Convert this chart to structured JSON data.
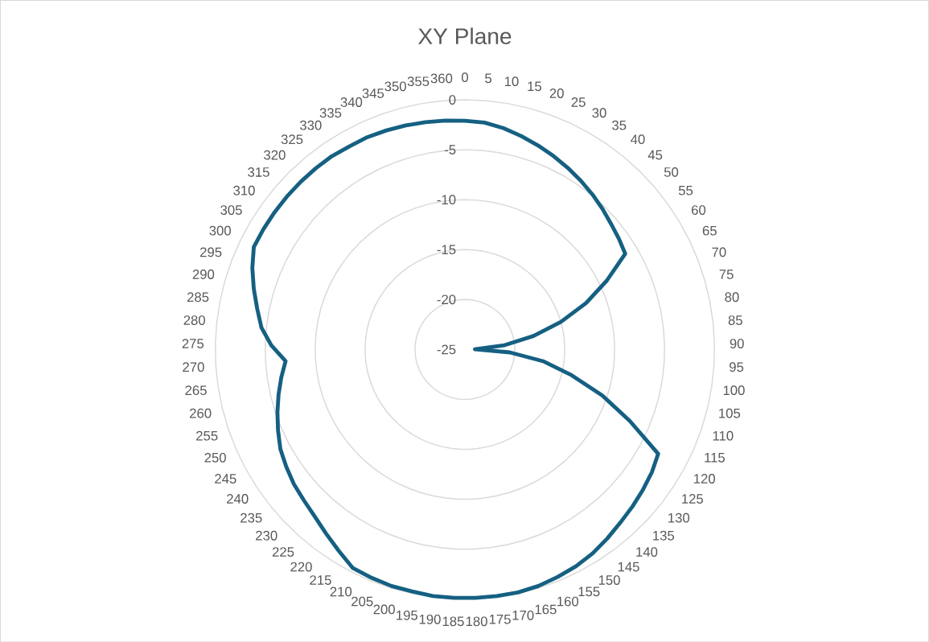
{
  "chart_data": {
    "type": "radar",
    "title": "XY Plane",
    "categories": [
      "0",
      "5",
      "10",
      "15",
      "20",
      "25",
      "30",
      "35",
      "40",
      "45",
      "50",
      "55",
      "60",
      "65",
      "70",
      "75",
      "80",
      "85",
      "90",
      "95",
      "100",
      "105",
      "110",
      "115",
      "120",
      "125",
      "130",
      "135",
      "140",
      "145",
      "150",
      "155",
      "160",
      "165",
      "170",
      "175",
      "180",
      "185",
      "190",
      "195",
      "200",
      "205",
      "210",
      "215",
      "220",
      "225",
      "230",
      "235",
      "240",
      "245",
      "250",
      "255",
      "260",
      "265",
      "270",
      "275",
      "280",
      "285",
      "290",
      "295",
      "300",
      "305",
      "310",
      "315",
      "320",
      "325",
      "330",
      "335",
      "340",
      "345",
      "350",
      "355",
      "360"
    ],
    "series": [
      {
        "color": "#156082",
        "values": [
          -2.1,
          -2.2,
          -2.5,
          -2.9,
          -3.3,
          -3.7,
          -4.1,
          -4.5,
          -4.9,
          -5.3,
          -5.7,
          -6.0,
          -6.3,
          -9.2,
          -12,
          -15,
          -18,
          -21,
          -24,
          -20.5,
          -17,
          -14,
          -10.5,
          -7,
          -3.0,
          -2.6,
          -2.3,
          -2.0,
          -1.7,
          -1.3,
          -0.9,
          -0.6,
          -0.4,
          -0.2,
          -0.1,
          -0.1,
          -0.1,
          -0.1,
          -0.1,
          -0.2,
          -0.2,
          -0.3,
          -0.4,
          -1.2,
          -1.9,
          -2.5,
          -2.9,
          -3.2,
          -3.6,
          -4.0,
          -4.6,
          -5.2,
          -5.8,
          -6.4,
          -7.0,
          -5.6,
          -4.5,
          -3.8,
          -3.0,
          -2.2,
          -1.5,
          -1.5,
          -1.5,
          -1.5,
          -1.5,
          -1.5,
          -1.5,
          -1.6,
          -1.6,
          -1.7,
          -1.8,
          -1.9,
          -2.0
        ]
      }
    ],
    "ylim": [
      -25,
      0
    ],
    "yticks": [
      -25,
      -20,
      -15,
      -10,
      -5,
      0
    ],
    "grid": true
  }
}
